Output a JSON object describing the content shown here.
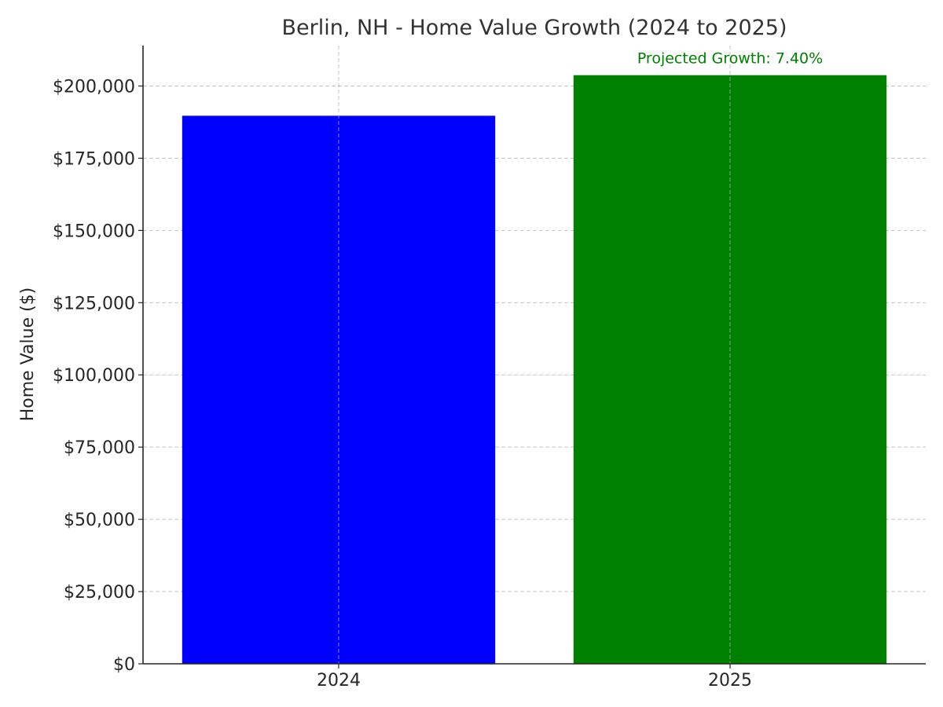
{
  "chart_data": {
    "type": "bar",
    "title": "Berlin, NH - Home Value Growth (2024 to 2025)",
    "xlabel": "",
    "ylabel": "Home Value ($)",
    "categories": [
      "2024",
      "2025"
    ],
    "values": [
      189700,
      203750
    ],
    "colors": [
      "#0000ff",
      "#008000"
    ],
    "ylim": [
      0,
      214000
    ],
    "yticks": [
      0,
      25000,
      50000,
      75000,
      100000,
      125000,
      150000,
      175000,
      200000
    ],
    "ytick_labels": [
      "$0",
      "$25,000",
      "$50,000",
      "$75,000",
      "$100,000",
      "$125,000",
      "$150,000",
      "$175,000",
      "$200,000"
    ],
    "grid": true,
    "annotation": {
      "text": "Projected Growth: 7.40%",
      "category": "2025",
      "color": "#008000"
    }
  }
}
